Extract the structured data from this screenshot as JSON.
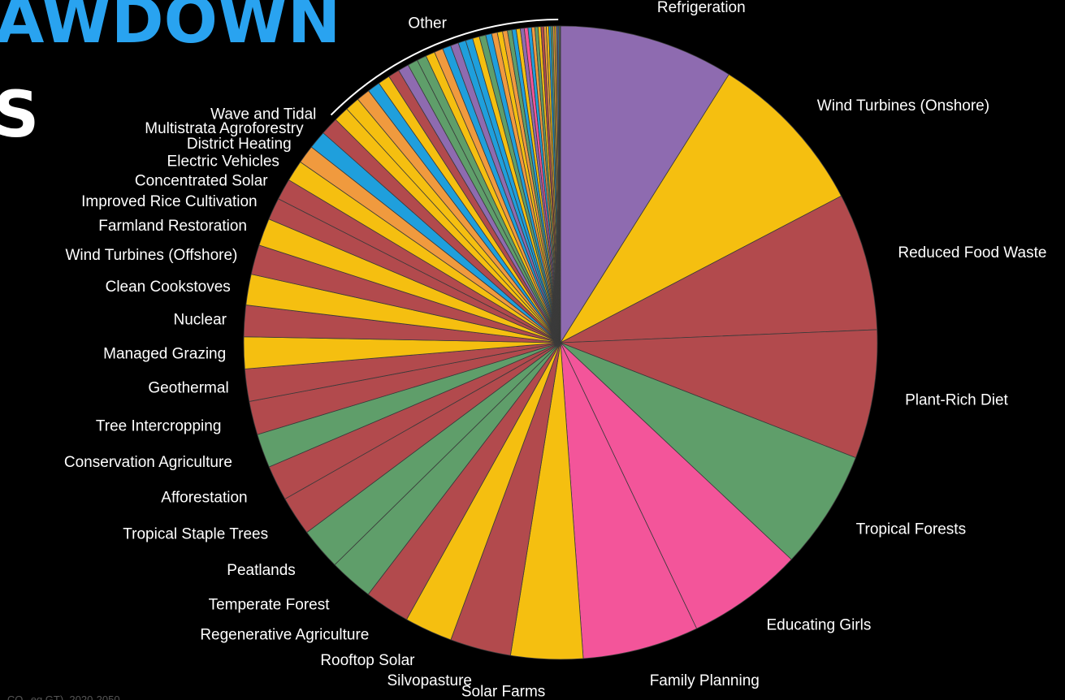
{
  "header": {
    "title_fragment": "AWDOWN",
    "subtitle_fragment": "S"
  },
  "footer": {
    "note": "...CO₂-eq GT), 2020-2050"
  },
  "chart_data": {
    "type": "pie",
    "legend": "labels around pie",
    "other_label": "Other",
    "slices": [
      {
        "name": "Refrigeration",
        "value": 89.7,
        "color": "#8e6bb0"
      },
      {
        "name": "Wind Turbines (Onshore)",
        "value": 84.6,
        "color": "#f5bf10"
      },
      {
        "name": "Reduced Food Waste",
        "value": 70.5,
        "color": "#b24a4d"
      },
      {
        "name": "Plant-Rich Diet",
        "value": 66.1,
        "color": "#b24a4d"
      },
      {
        "name": "Tropical Forests",
        "value": 61.2,
        "color": "#5f9e6a"
      },
      {
        "name": "Educating Girls",
        "value": 59.6,
        "color": "#f3559a"
      },
      {
        "name": "Family Planning",
        "value": 59.6,
        "color": "#f3559a"
      },
      {
        "name": "Solar Farms",
        "value": 36.9,
        "color": "#f5bf10"
      },
      {
        "name": "Silvopasture",
        "value": 31.2,
        "color": "#b24a4d"
      },
      {
        "name": "Rooftop Solar",
        "value": 24.6,
        "color": "#f5bf10"
      },
      {
        "name": "Regenerative Agriculture",
        "value": 23.2,
        "color": "#b24a4d"
      },
      {
        "name": "Temperate Forest",
        "value": 22.6,
        "color": "#5f9e6a"
      },
      {
        "name": "Peatlands",
        "value": 21.6,
        "color": "#5f9e6a"
      },
      {
        "name": "Tropical Staple Trees",
        "value": 20.2,
        "color": "#b24a4d"
      },
      {
        "name": "Afforestation",
        "value": 18.1,
        "color": "#b24a4d"
      },
      {
        "name": "Conservation Agriculture",
        "value": 17.4,
        "color": "#5f9e6a"
      },
      {
        "name": "Tree Intercropping",
        "value": 17.2,
        "color": "#b24a4d"
      },
      {
        "name": "Geothermal",
        "value": 16.6,
        "color": "#b24a4d"
      },
      {
        "name": "Managed Grazing",
        "value": 16.3,
        "color": "#f5bf10"
      },
      {
        "name": "Nuclear",
        "value": 16.1,
        "color": "#b24a4d"
      },
      {
        "name": "Clean Cookstoves",
        "value": 15.8,
        "color": "#f5bf10"
      },
      {
        "name": "Wind Turbines (Offshore)",
        "value": 15.2,
        "color": "#b24a4d"
      },
      {
        "name": "Farmland Restoration",
        "value": 14.1,
        "color": "#f5bf10"
      },
      {
        "name": "Improved Rice Cultivation",
        "value": 11.3,
        "color": "#b24a4d"
      },
      {
        "name": "Concentrated Solar",
        "value": 10.9,
        "color": "#b24a4d"
      },
      {
        "name": "Electric Vehicles",
        "value": 10.8,
        "color": "#f5bf10"
      },
      {
        "name": "District Heating",
        "value": 9.4,
        "color": "#f09a3e"
      },
      {
        "name": "Multistrata Agroforestry",
        "value": 9.3,
        "color": "#1f9fdc"
      },
      {
        "name": "Wave and Tidal",
        "value": 9.2,
        "color": "#b24a4d"
      },
      {
        "name": "",
        "value": 7.8,
        "color": "#f5bf10"
      },
      {
        "name": "",
        "value": 7.4,
        "color": "#f5bf10"
      },
      {
        "name": "",
        "value": 6.9,
        "color": "#f09a3e"
      },
      {
        "name": "",
        "value": 6.5,
        "color": "#1f9fdc"
      },
      {
        "name": "",
        "value": 6.1,
        "color": "#f5bf10"
      },
      {
        "name": "",
        "value": 5.8,
        "color": "#b24a4d"
      },
      {
        "name": "",
        "value": 5.5,
        "color": "#8e6bb0"
      },
      {
        "name": "",
        "value": 5.2,
        "color": "#5f9e6a"
      },
      {
        "name": "",
        "value": 4.9,
        "color": "#5f9e6a"
      },
      {
        "name": "",
        "value": 4.7,
        "color": "#f5bf10"
      },
      {
        "name": "",
        "value": 4.5,
        "color": "#f09a3e"
      },
      {
        "name": "",
        "value": 4.3,
        "color": "#1f9fdc"
      },
      {
        "name": "",
        "value": 4.1,
        "color": "#8e6bb0"
      },
      {
        "name": "",
        "value": 3.9,
        "color": "#1f9fdc"
      },
      {
        "name": "",
        "value": 3.7,
        "color": "#1f9fdc"
      },
      {
        "name": "",
        "value": 3.5,
        "color": "#f5bf10"
      },
      {
        "name": "",
        "value": 3.3,
        "color": "#5f9e6a"
      },
      {
        "name": "",
        "value": 3.1,
        "color": "#1f9fdc"
      },
      {
        "name": "",
        "value": 2.9,
        "color": "#f09a3e"
      },
      {
        "name": "",
        "value": 2.7,
        "color": "#f5bf10"
      },
      {
        "name": "",
        "value": 2.5,
        "color": "#f09a3e"
      },
      {
        "name": "",
        "value": 2.3,
        "color": "#5f9e6a"
      },
      {
        "name": "",
        "value": 2.2,
        "color": "#1f9fdc"
      },
      {
        "name": "",
        "value": 2.1,
        "color": "#f5bf10"
      },
      {
        "name": "",
        "value": 2.0,
        "color": "#8e6bb0"
      },
      {
        "name": "",
        "value": 1.9,
        "color": "#f3559a"
      },
      {
        "name": "",
        "value": 1.8,
        "color": "#1f9fdc"
      },
      {
        "name": "",
        "value": 1.7,
        "color": "#f09a3e"
      },
      {
        "name": "",
        "value": 1.6,
        "color": "#5f9e6a"
      },
      {
        "name": "",
        "value": 1.5,
        "color": "#f5bf10"
      },
      {
        "name": "",
        "value": 1.4,
        "color": "#b24a4d"
      },
      {
        "name": "",
        "value": 1.3,
        "color": "#f09a3e"
      },
      {
        "name": "",
        "value": 1.2,
        "color": "#f5bf10"
      },
      {
        "name": "",
        "value": 1.1,
        "color": "#1f9fdc"
      },
      {
        "name": "",
        "value": 1.0,
        "color": "#5f9e6a"
      },
      {
        "name": "",
        "value": 0.9,
        "color": "#f09a3e"
      },
      {
        "name": "",
        "value": 0.8,
        "color": "#f5bf10"
      },
      {
        "name": "",
        "value": 0.7,
        "color": "#8e6bb0"
      },
      {
        "name": "",
        "value": 0.6,
        "color": "#1f9fdc"
      },
      {
        "name": "",
        "value": 0.5,
        "color": "#f09a3e"
      },
      {
        "name": "",
        "value": 0.4,
        "color": "#5f9e6a"
      }
    ]
  }
}
